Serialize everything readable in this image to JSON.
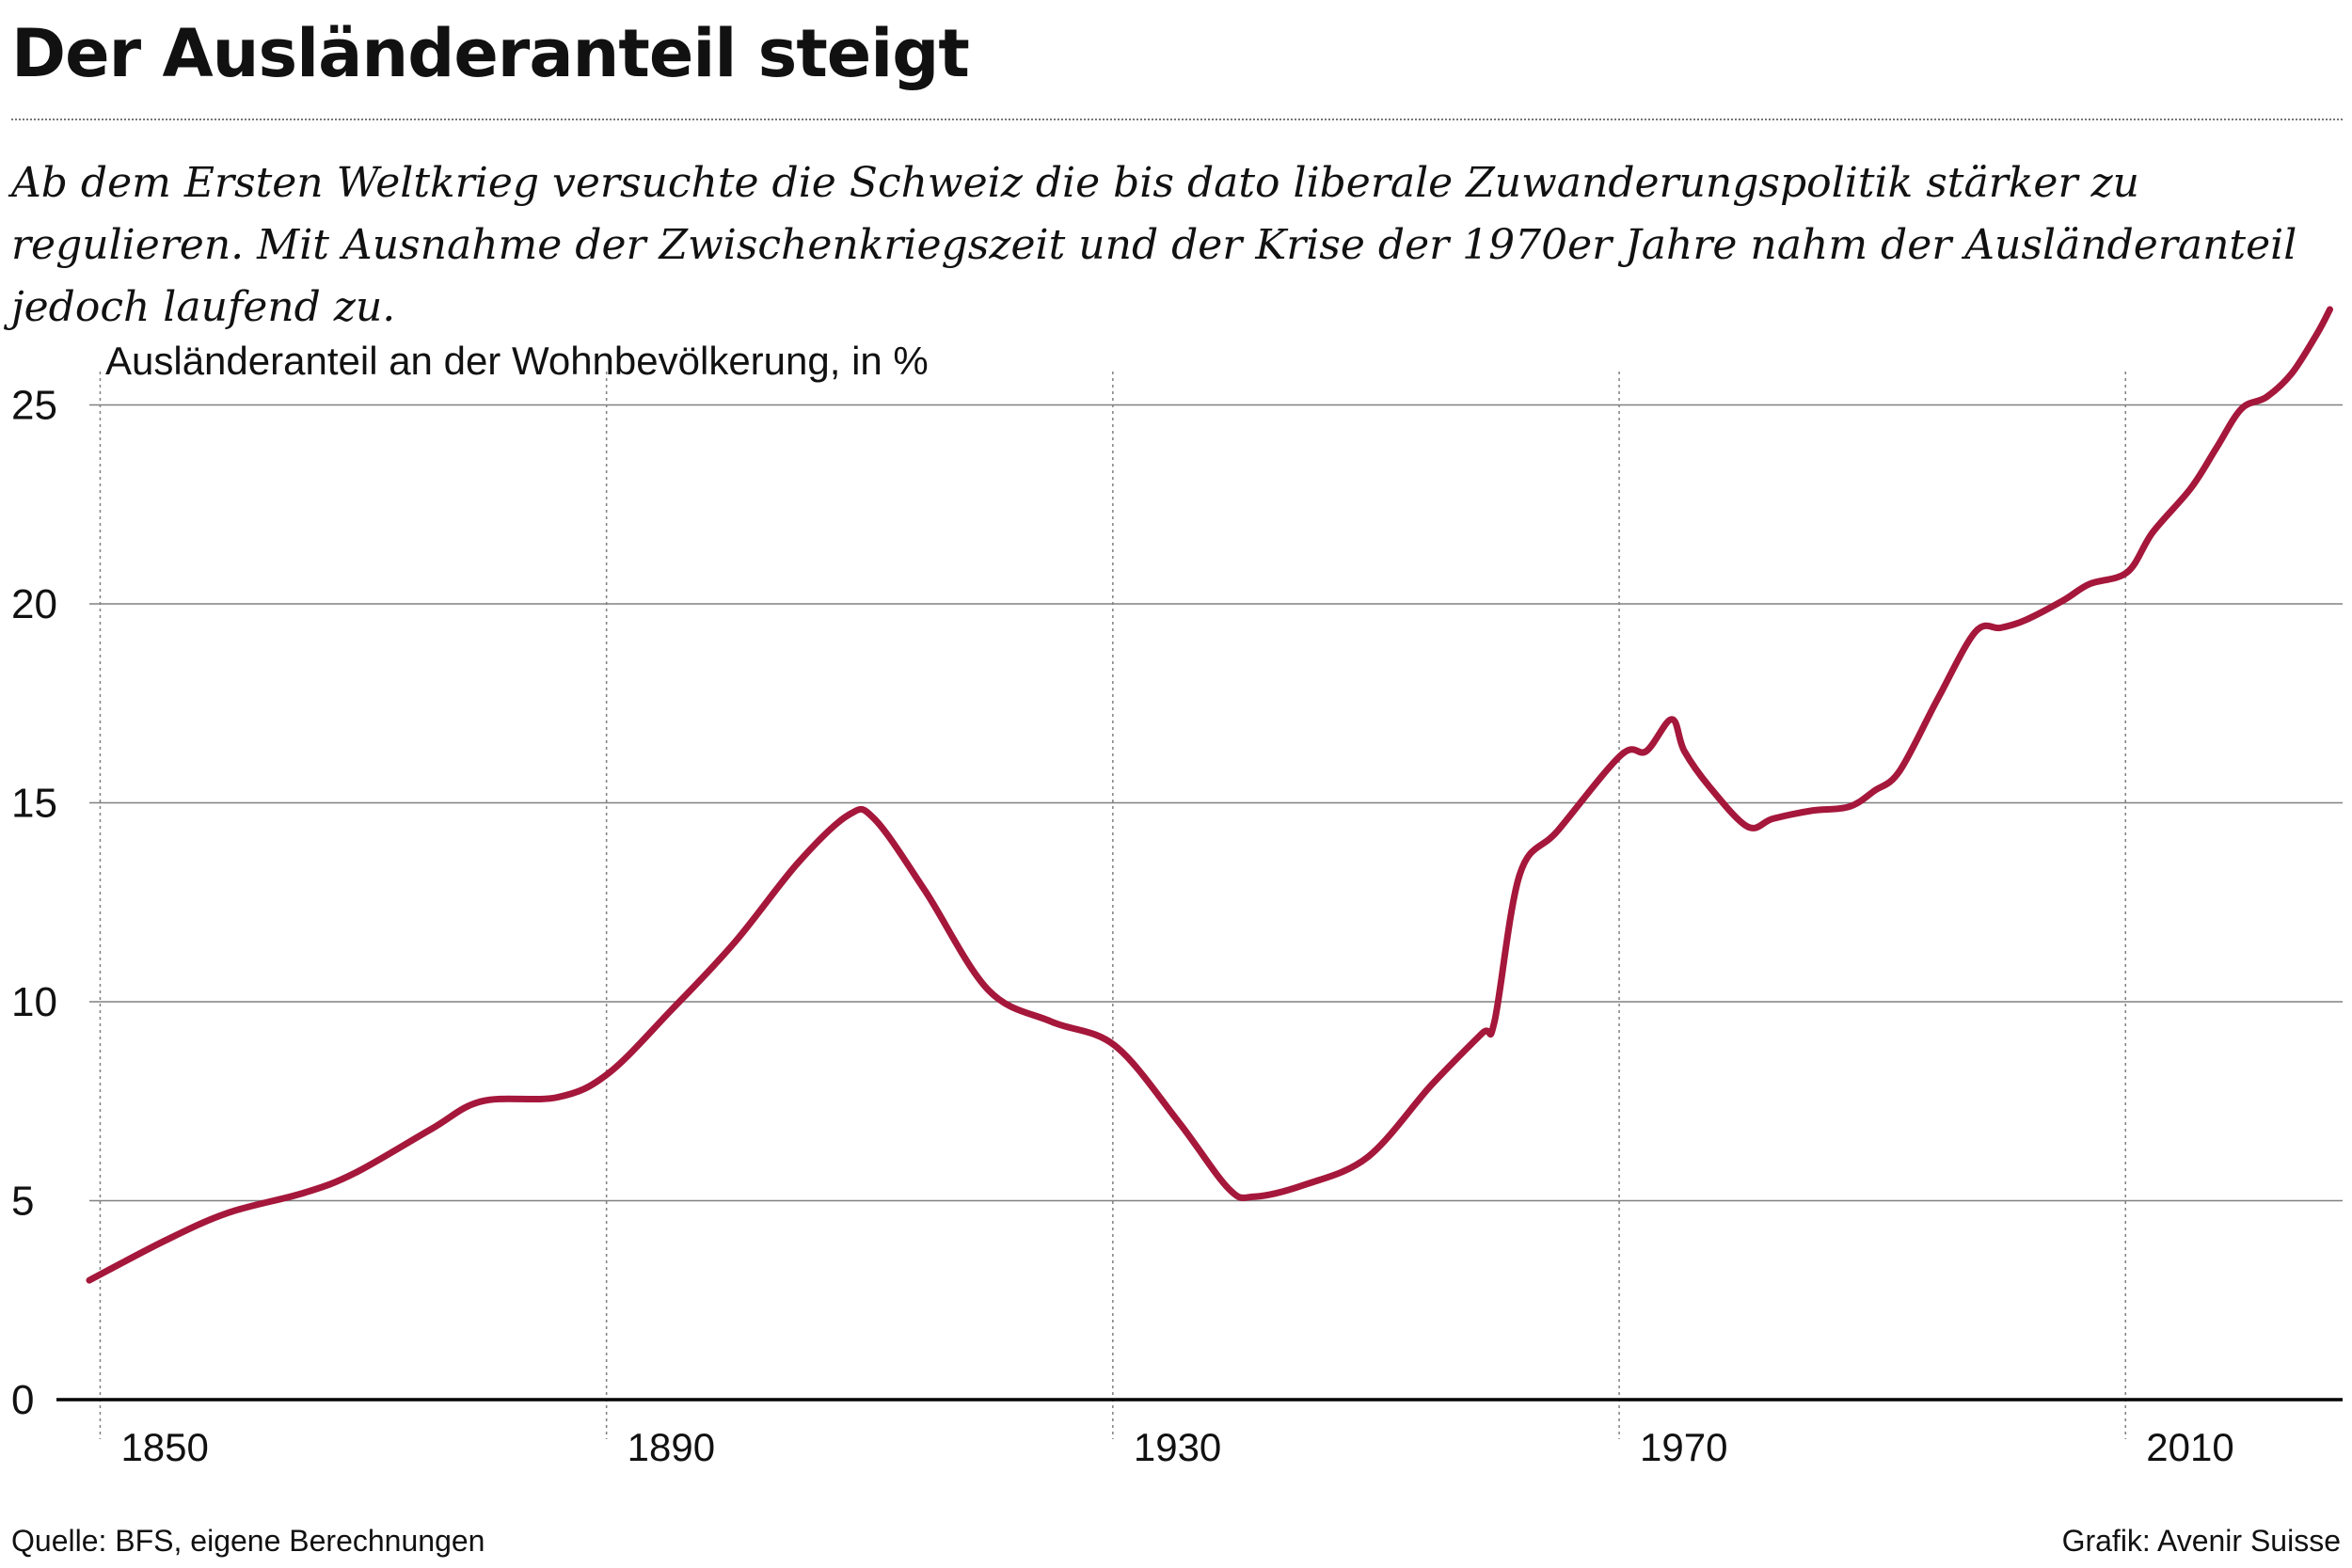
{
  "header": {
    "title": "Der Ausländeranteil steigt",
    "subtitle": "Ab dem Ersten Weltkrieg versuchte die Schweiz die bis dato liberale Zuwanderungspolitik stärker zu regulieren. Mit Ausnahme der Zwischenkriegszeit und der Krise der 1970er Jahre nahm der Ausländeranteil jedoch laufend zu."
  },
  "footer": {
    "source": "Quelle: BFS, eigene Berechnungen",
    "credit": "Grafik: Avenir Suisse"
  },
  "colors": {
    "line": "#a5173b",
    "grid": "#808080",
    "axis": "#000000"
  },
  "chart_data": {
    "type": "line",
    "title": "Der Ausländeranteil steigt",
    "ylabel": "Ausländeranteil an der Wohnbevölkerung, in %",
    "xlabel": "",
    "xlim": [
      1849,
      2027
    ],
    "ylim": [
      0,
      27
    ],
    "yticks": [
      0,
      5,
      10,
      15,
      20,
      25
    ],
    "xticks": [
      1850,
      1890,
      1930,
      1970,
      2010
    ],
    "grid": true,
    "series": [
      {
        "name": "Ausländeranteil",
        "x": [
          1849,
          1855,
          1860,
          1866,
          1870,
          1876,
          1880,
          1886,
          1890,
          1895,
          1900,
          1905,
          1909,
          1911,
          1915,
          1920,
          1925,
          1930,
          1935,
          1939,
          1941,
          1945,
          1950,
          1955,
          1959,
          1960,
          1962,
          1965,
          1970,
          1972,
          1974,
          1975,
          1977,
          1980,
          1982,
          1985,
          1988,
          1990,
          1992,
          1995,
          1998,
          2000,
          2002,
          2005,
          2007,
          2010,
          2012,
          2015,
          2017,
          2019,
          2021,
          2023,
          2025,
          2026
        ],
        "values": [
          3.0,
          4.0,
          4.7,
          5.2,
          5.7,
          6.8,
          7.5,
          7.6,
          8.2,
          9.8,
          11.5,
          13.5,
          14.7,
          14.6,
          12.8,
          10.3,
          9.5,
          8.9,
          7.0,
          5.3,
          5.1,
          5.4,
          6.1,
          7.9,
          9.2,
          9.5,
          13.2,
          14.3,
          16.2,
          16.3,
          17.1,
          16.3,
          15.4,
          14.4,
          14.6,
          14.8,
          14.9,
          15.3,
          15.8,
          17.6,
          19.3,
          19.4,
          19.6,
          20.1,
          20.5,
          20.8,
          21.8,
          22.9,
          23.9,
          24.9,
          25.2,
          25.8,
          26.8,
          27.4
        ]
      }
    ]
  }
}
